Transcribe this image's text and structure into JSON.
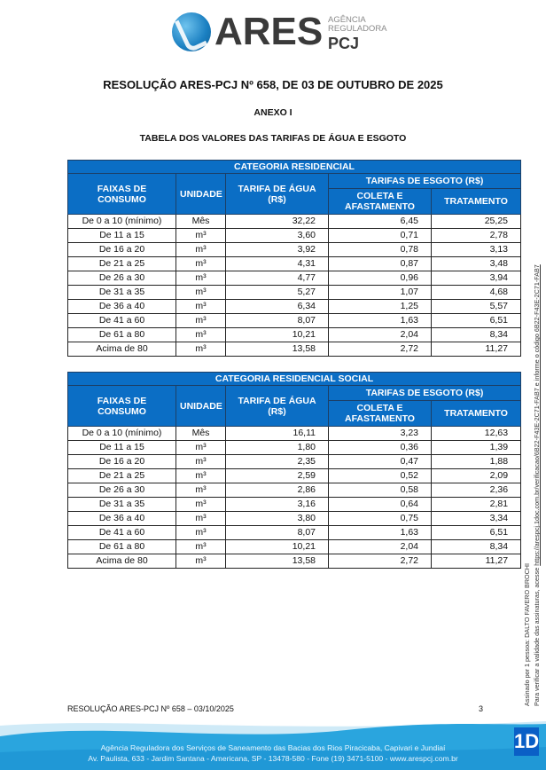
{
  "logo": {
    "name": "ARES",
    "subtitle_line1": "AGÊNCIA",
    "subtitle_line2": "REGULADORA",
    "suffix": "PCJ"
  },
  "title": "RESOLUÇÃO ARES-PCJ Nº 658, DE 03 DE OUTUBRO DE 2025",
  "annex": "ANEXO I",
  "table_caption": "TABELA DOS VALORES DAS TARIFAS DE ÁGUA E ESGOTO",
  "headers": {
    "faixas": "FAIXAS DE CONSUMO",
    "unidade": "UNIDADE",
    "agua": "TARIFA DE ÁGUA (R$)",
    "esgoto": "TARIFAS DE ESGOTO (R$)",
    "coleta": "COLETA E AFASTAMENTO",
    "tratamento": "TRATAMENTO"
  },
  "header_color": "#0b6ec5",
  "tables": [
    {
      "category": "CATEGORIA RESIDENCIAL",
      "rows": [
        [
          "De 0 a 10 (mínimo)",
          "Mês",
          "32,22",
          "6,45",
          "25,25"
        ],
        [
          "De 11 a 15",
          "m³",
          "3,60",
          "0,71",
          "2,78"
        ],
        [
          "De 16 a 20",
          "m³",
          "3,92",
          "0,78",
          "3,13"
        ],
        [
          "De 21 a 25",
          "m³",
          "4,31",
          "0,87",
          "3,48"
        ],
        [
          "De 26 a 30",
          "m³",
          "4,77",
          "0,96",
          "3,94"
        ],
        [
          "De 31 a 35",
          "m³",
          "5,27",
          "1,07",
          "4,68"
        ],
        [
          "De 36 a 40",
          "m³",
          "6,34",
          "1,25",
          "5,57"
        ],
        [
          "De 41 a 60",
          "m³",
          "8,07",
          "1,63",
          "6,51"
        ],
        [
          "De 61 a 80",
          "m³",
          "10,21",
          "2,04",
          "8,34"
        ],
        [
          "Acima de 80",
          "m³",
          "13,58",
          "2,72",
          "11,27"
        ]
      ]
    },
    {
      "category": "CATEGORIA RESIDENCIAL SOCIAL",
      "rows": [
        [
          "De 0 a 10 (mínimo)",
          "Mês",
          "16,11",
          "3,23",
          "12,63"
        ],
        [
          "De 11 a 15",
          "m³",
          "1,80",
          "0,36",
          "1,39"
        ],
        [
          "De 16 a 20",
          "m³",
          "2,35",
          "0,47",
          "1,88"
        ],
        [
          "De 21 a 25",
          "m³",
          "2,59",
          "0,52",
          "2,09"
        ],
        [
          "De 26 a 30",
          "m³",
          "2,86",
          "0,58",
          "2,36"
        ],
        [
          "De 31 a 35",
          "m³",
          "3,16",
          "0,64",
          "2,81"
        ],
        [
          "De 36 a 40",
          "m³",
          "3,80",
          "0,75",
          "3,34"
        ],
        [
          "De 41 a 60",
          "m³",
          "8,07",
          "1,63",
          "6,51"
        ],
        [
          "De 61 a 80",
          "m³",
          "10,21",
          "2,04",
          "8,34"
        ],
        [
          "Acima de 80",
          "m³",
          "13,58",
          "2,72",
          "11,27"
        ]
      ]
    }
  ],
  "footer": {
    "reference": "RESOLUÇÃO ARES-PCJ Nº 658 – 03/10/2025",
    "page": "3",
    "address_line1": "Agência Reguladora dos Serviços de Saneamento das Bacias dos Rios Piracicaba, Capivari e Jundiaí",
    "address_line2": "Av. Paulista, 633 - Jardim Santana - Americana, SP - 13478-580 - Fone (19) 3471-5100 - www.arespcj.com.br"
  },
  "signature": {
    "signed_by": "Assinado por 1 pessoa: DALTO FAVERO BROCHI",
    "verify_text": "Para verificar a validade das assinaturas, acesse",
    "verify_link": "https://arespcj.1doc.com.br/verificacao/6B22-F43E-2C71-FAB7 e informe o código 6B22-F43E-2C71-FAB7",
    "badge": "1D"
  }
}
